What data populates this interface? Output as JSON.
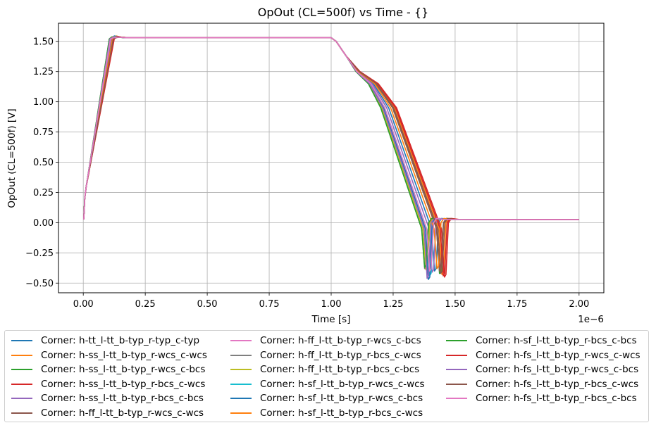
{
  "chart_data": {
    "type": "line",
    "title": "OpOut (CL=500f) vs Time - {}",
    "xlabel": "Time [s]",
    "ylabel": "OpOut (CL=500f) [V]",
    "x_offset_text": "1e−6",
    "xlim": [
      -1e-07,
      2.1e-06
    ],
    "ylim": [
      -0.58,
      1.65
    ],
    "xticks": [
      0,
      2.5e-07,
      5e-07,
      7.5e-07,
      1e-06,
      1.25e-06,
      1.5e-06,
      1.75e-06,
      2e-06
    ],
    "xtick_labels": [
      "0.00",
      "0.25",
      "0.50",
      "0.75",
      "1.00",
      "1.25",
      "1.50",
      "1.75",
      "2.00"
    ],
    "yticks": [
      -0.5,
      -0.25,
      0,
      0.25,
      0.5,
      0.75,
      1.0,
      1.25,
      1.5
    ],
    "ytick_labels": [
      "−0.50",
      "−0.25",
      "0.00",
      "0.25",
      "0.50",
      "0.75",
      "1.00",
      "1.25",
      "1.50"
    ],
    "grid": true,
    "legend_position": "below",
    "series": [
      {
        "name": "Corner: h-tt_l-tt_b-typ_r-typ_c-typ",
        "color": "#1f77b4",
        "shift": 0.04,
        "min": -0.4
      },
      {
        "name": "Corner: h-ss_l-tt_b-typ_r-wcs_c-wcs",
        "color": "#ff7f0e",
        "shift": 0.07,
        "min": -0.43
      },
      {
        "name": "Corner: h-ss_l-tt_b-typ_r-wcs_c-bcs",
        "color": "#2ca02c",
        "shift": 0.06,
        "min": -0.42
      },
      {
        "name": "Corner: h-ss_l-tt_b-typ_r-bcs_c-wcs",
        "color": "#d62728",
        "shift": 0.08,
        "min": -0.45
      },
      {
        "name": "Corner: h-ss_l-tt_b-typ_r-bcs_c-bcs",
        "color": "#9467bd",
        "shift": 0.03,
        "min": -0.41
      },
      {
        "name": "Corner: h-ff_l-tt_b-typ_r-wcs_c-wcs",
        "color": "#8c564b",
        "shift": 0.06,
        "min": -0.4
      },
      {
        "name": "Corner: h-ff_l-tt_b-typ_r-wcs_c-bcs",
        "color": "#e377c2",
        "shift": 0.01,
        "min": -0.43
      },
      {
        "name": "Corner: h-ff_l-tt_b-typ_r-bcs_c-wcs",
        "color": "#7f7f7f",
        "shift": 0.0,
        "min": -0.38
      },
      {
        "name": "Corner: h-ff_l-tt_b-typ_r-bcs_c-bcs",
        "color": "#bcbd22",
        "shift": 0.005,
        "min": -0.39
      },
      {
        "name": "Corner: h-sf_l-tt_b-typ_r-wcs_c-wcs",
        "color": "#17becf",
        "shift": 0.02,
        "min": -0.44
      },
      {
        "name": "Corner: h-sf_l-tt_b-typ_r-wcs_c-bcs",
        "color": "#1f77b4",
        "shift": 0.015,
        "min": -0.47
      },
      {
        "name": "Corner: h-sf_l-tt_b-typ_r-bcs_c-wcs",
        "color": "#ff7f0e",
        "shift": 0.05,
        "min": -0.38
      },
      {
        "name": "Corner: h-sf_l-tt_b-typ_r-bcs_c-bcs",
        "color": "#2ca02c",
        "shift": 0.0,
        "min": -0.37
      },
      {
        "name": "Corner: h-fs_l-tt_b-typ_r-wcs_c-wcs",
        "color": "#d62728",
        "shift": 0.075,
        "min": -0.44
      },
      {
        "name": "Corner: h-fs_l-tt_b-typ_r-wcs_c-bcs",
        "color": "#9467bd",
        "shift": 0.01,
        "min": -0.46
      },
      {
        "name": "Corner: h-fs_l-tt_b-typ_r-bcs_c-wcs",
        "color": "#8c564b",
        "shift": 0.065,
        "min": -0.42
      },
      {
        "name": "Corner: h-fs_l-tt_b-typ_r-bcs_c-bcs",
        "color": "#e377c2",
        "shift": 0.02,
        "min": -0.4
      }
    ]
  }
}
